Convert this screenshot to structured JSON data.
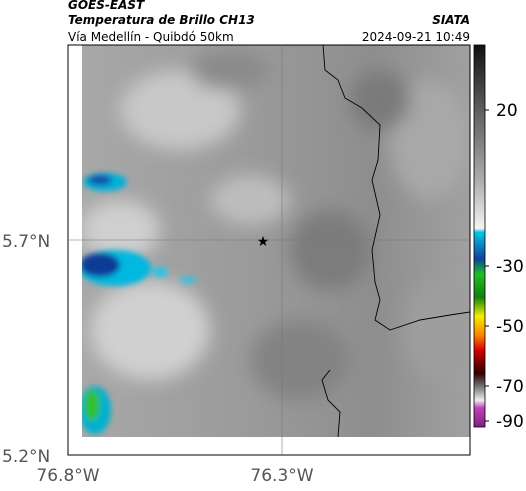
{
  "header": {
    "satellite": "GOES-EAST",
    "product": "Temperatura de Brillo CH13",
    "source": "SIATA",
    "subtitle": "Vía Medellín - Quibdó 50km",
    "timestamp": "2024-09-21 10:49"
  },
  "map": {
    "lat_ticks": [
      "5.7°N",
      "5.2°N"
    ],
    "lon_ticks": [
      "76.8°W",
      "76.3°W"
    ]
  },
  "colorbar": {
    "ticks": [
      "20",
      "-30",
      "-50",
      "-70",
      "-90"
    ]
  }
}
